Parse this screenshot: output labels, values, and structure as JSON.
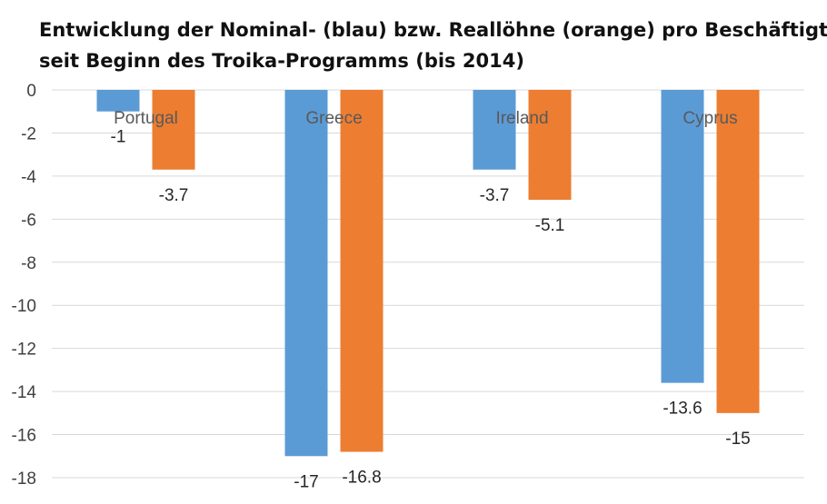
{
  "chart_data": {
    "type": "bar",
    "title_line1": "Entwicklung der Nominal- (blau) bzw. Reallöhne (orange) pro Beschäftigtem",
    "title_line2": "seit Beginn des Troika-Programms (bis 2014)",
    "categories": [
      "Portugal",
      "Greece",
      "Ireland",
      "Cyprus"
    ],
    "series": [
      {
        "values": [
          -1,
          -17,
          -3.7,
          -13.6
        ],
        "color": "#5b9bd5"
      },
      {
        "values": [
          -3.7,
          -16.8,
          -5.1,
          -15
        ],
        "color": "#ed7d31"
      }
    ],
    "ylim": [
      -18,
      0
    ],
    "ytick_step": 2,
    "yticks": [
      0,
      -2,
      -4,
      -6,
      -8,
      -10,
      -12,
      -14,
      -16,
      -18
    ],
    "grid": true,
    "category_label_position": "top"
  }
}
